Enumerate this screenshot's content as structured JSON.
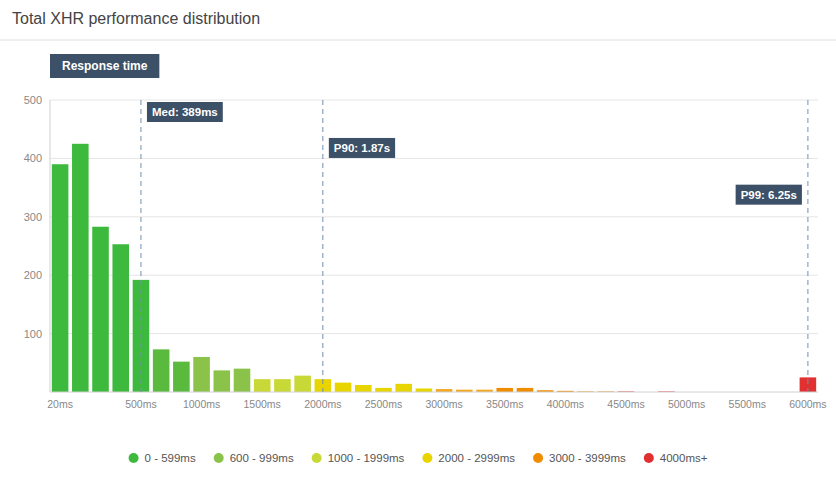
{
  "chart_data": {
    "type": "bar",
    "title": "Total XHR performance distribution",
    "subtitle": "Response time",
    "categories": [
      "20ms",
      null,
      null,
      null,
      "500ms",
      null,
      null,
      "1000ms",
      null,
      null,
      "1500ms",
      null,
      null,
      "2000ms",
      null,
      null,
      "2500ms",
      null,
      null,
      "3000ms",
      null,
      null,
      "3500ms",
      null,
      null,
      "4000ms",
      null,
      null,
      "4500ms",
      null,
      null,
      "5000ms",
      null,
      null,
      "5500ms",
      null,
      null,
      "6000ms"
    ],
    "values": [
      390,
      425,
      283,
      253,
      192,
      73,
      52,
      60,
      37,
      40,
      22,
      22,
      28,
      22,
      16,
      12,
      7,
      14,
      6,
      5,
      4,
      4,
      7,
      7,
      3,
      2,
      1,
      1,
      1,
      0,
      1,
      0,
      0,
      0,
      0,
      0,
      0,
      25
    ],
    "colors": [
      "#3dba3d",
      "#3dba3d",
      "#3dba3d",
      "#3dba3d",
      "#3dba3d",
      "#5aba3d",
      "#5aba3d",
      "#8bc34a",
      "#8bc34a",
      "#8bc34a",
      "#c8d836",
      "#c8d836",
      "#c8d836",
      "#e8d500",
      "#e8d500",
      "#e8d500",
      "#e8d500",
      "#e8d500",
      "#e8d500",
      "#f5a623",
      "#f5a623",
      "#f5a623",
      "#f08c00",
      "#f08c00",
      "#f08c00",
      "#f08c00",
      "#f08c00",
      "#f08c00",
      "#e03030",
      "#e03030",
      "#e03030",
      "#e03030",
      "#e03030",
      "#e03030",
      "#e03030",
      "#e03030",
      "#e03030",
      "#e03030"
    ],
    "ylim": [
      0,
      500
    ],
    "yticks": [
      100,
      200,
      300,
      400,
      500
    ],
    "grid": true,
    "annotations": [
      {
        "x": 4,
        "text": "Med: 389ms"
      },
      {
        "x": 13,
        "text": "P90: 1.87s"
      },
      {
        "x": 37,
        "text": "P99: 6.25s"
      }
    ],
    "legend": "bottom",
    "legend_entries": [
      {
        "label": "0 - 599ms",
        "color": "#3dba3d"
      },
      {
        "label": "600 - 999ms",
        "color": "#8bc34a"
      },
      {
        "label": "1000 - 1999ms",
        "color": "#c8d836"
      },
      {
        "label": "2000 - 2999ms",
        "color": "#e8d500"
      },
      {
        "label": "3000 - 3999ms",
        "color": "#f08c00"
      },
      {
        "label": "4000ms+",
        "color": "#e03030"
      }
    ]
  }
}
